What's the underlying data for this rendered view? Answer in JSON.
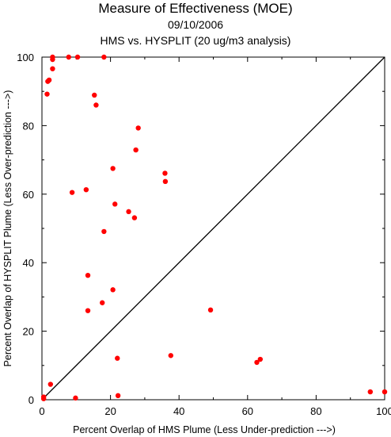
{
  "chart_data": {
    "type": "scatter",
    "title": "Measure of Effectiveness (MOE)",
    "subtitle": "09/10/2006",
    "subtitle2": "HMS vs. HYSPLIT  (20 ug/m3 analysis)",
    "xlabel": "Percent Overlap of HMS Plume (Less Under-prediction --->)",
    "ylabel": "Percent Overlap of HYSPLIT Plume (Less Over-prediction --->)",
    "xlim": [
      0,
      100
    ],
    "ylim": [
      0,
      100
    ],
    "xticks": [
      0,
      20,
      40,
      60,
      80,
      100
    ],
    "yticks": [
      0,
      20,
      40,
      60,
      80,
      100
    ],
    "grid": false,
    "diagonal_line": true,
    "point_color": "#ff0000",
    "points": [
      {
        "x": 0.5,
        "y": 0.8
      },
      {
        "x": 0.5,
        "y": 0.3
      },
      {
        "x": 2.5,
        "y": 4.5
      },
      {
        "x": 9.8,
        "y": 0.5
      },
      {
        "x": 22.2,
        "y": 1.2
      },
      {
        "x": 3.1,
        "y": 100
      },
      {
        "x": 3.1,
        "y": 99.3
      },
      {
        "x": 3.1,
        "y": 96.6
      },
      {
        "x": 7.8,
        "y": 100
      },
      {
        "x": 10.4,
        "y": 100
      },
      {
        "x": 18.1,
        "y": 100
      },
      {
        "x": 2.1,
        "y": 93.3
      },
      {
        "x": 1.7,
        "y": 92.9
      },
      {
        "x": 1.5,
        "y": 89.2
      },
      {
        "x": 15.3,
        "y": 88.9
      },
      {
        "x": 15.8,
        "y": 86.0
      },
      {
        "x": 28.1,
        "y": 79.3
      },
      {
        "x": 27.4,
        "y": 72.9
      },
      {
        "x": 20.7,
        "y": 67.5
      },
      {
        "x": 35.9,
        "y": 66.1
      },
      {
        "x": 36.0,
        "y": 63.7
      },
      {
        "x": 8.8,
        "y": 60.5
      },
      {
        "x": 12.9,
        "y": 61.3
      },
      {
        "x": 21.3,
        "y": 57.1
      },
      {
        "x": 25.3,
        "y": 54.9
      },
      {
        "x": 27.0,
        "y": 53.1
      },
      {
        "x": 18.1,
        "y": 49.1
      },
      {
        "x": 13.4,
        "y": 36.3
      },
      {
        "x": 20.7,
        "y": 32.1
      },
      {
        "x": 17.6,
        "y": 28.3
      },
      {
        "x": 13.4,
        "y": 26.0
      },
      {
        "x": 49.2,
        "y": 26.2
      },
      {
        "x": 37.6,
        "y": 12.9
      },
      {
        "x": 22.0,
        "y": 12.1
      },
      {
        "x": 63.7,
        "y": 11.8
      },
      {
        "x": 62.7,
        "y": 10.9
      },
      {
        "x": 95.8,
        "y": 2.3
      },
      {
        "x": 100,
        "y": 2.3
      }
    ]
  }
}
